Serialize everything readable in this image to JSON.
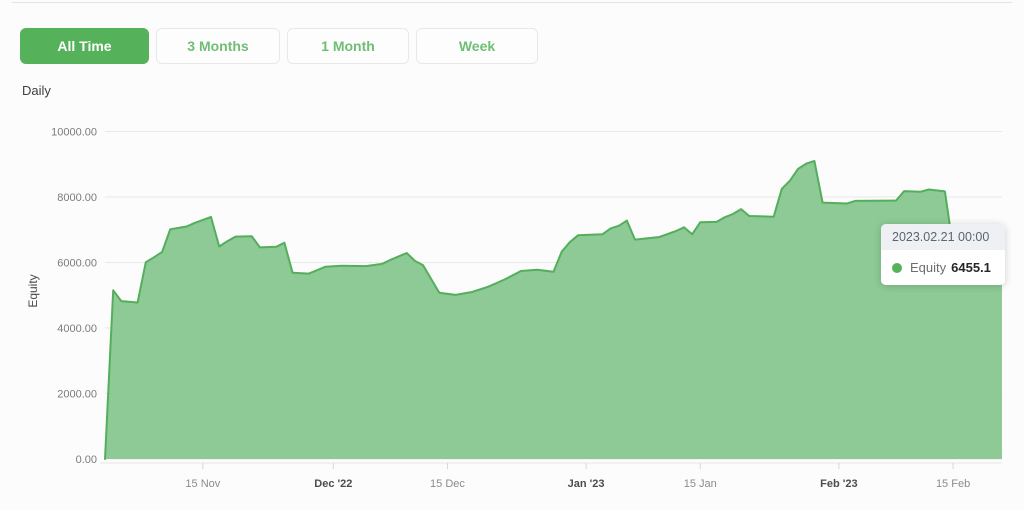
{
  "toolbar": {
    "buttons": [
      {
        "label": "All Time",
        "active": true
      },
      {
        "label": "3 Months",
        "active": false
      },
      {
        "label": "1 Month",
        "active": false
      },
      {
        "label": "Week",
        "active": false
      }
    ]
  },
  "frequency_label": "Daily",
  "tooltip": {
    "date": "2023.02.21 00:00",
    "series_label": "Equity",
    "value": "6455.1",
    "marker_color": "#56b15b"
  },
  "colors": {
    "accent_green": "#56b15b",
    "area_fill": "#7dc388",
    "line": "#54ae5c",
    "gridline": "#e9e9e9",
    "axis_line": "#e6e6e6",
    "tick_mark": "#d8d8d8",
    "y_label": "#7b7b7b",
    "x_label": "#8b8b8b",
    "x_label_bold": "#4c4c4c",
    "page_background": "#fcfcfc"
  },
  "chart_data": {
    "type": "area",
    "title": "",
    "xlabel": "",
    "ylabel": "Equity",
    "grid": true,
    "legend": "none",
    "ylim": [
      0,
      10000
    ],
    "x_range": [
      "2022-11-03",
      "2023-02-21"
    ],
    "y_ticks": [
      {
        "value": 0,
        "label": "0.00"
      },
      {
        "value": 2000,
        "label": "2000.00"
      },
      {
        "value": 4000,
        "label": "4000.00"
      },
      {
        "value": 6000,
        "label": "6000.00"
      },
      {
        "value": 8000,
        "label": "8000.00"
      },
      {
        "value": 10000,
        "label": "10000.00"
      }
    ],
    "x_ticks": [
      {
        "label": "15 Nov",
        "date": "2022-11-15",
        "bold": false
      },
      {
        "label": "Dec '22",
        "date": "2022-12-01",
        "bold": true
      },
      {
        "label": "15 Dec",
        "date": "2022-12-15",
        "bold": false
      },
      {
        "label": "Jan '23",
        "date": "2023-01-01",
        "bold": true
      },
      {
        "label": "15 Jan",
        "date": "2023-01-15",
        "bold": false
      },
      {
        "label": "Feb '23",
        "date": "2023-02-01",
        "bold": true
      },
      {
        "label": "15 Feb",
        "date": "2023-02-15",
        "bold": false
      }
    ],
    "series": [
      {
        "name": "Equity",
        "points": [
          [
            "2022-11-03",
            0
          ],
          [
            "2022-11-04",
            5150
          ],
          [
            "2022-11-05",
            4820
          ],
          [
            "2022-11-07",
            4780
          ],
          [
            "2022-11-08",
            6010
          ],
          [
            "2022-11-09",
            6160
          ],
          [
            "2022-11-10",
            6320
          ],
          [
            "2022-11-11",
            7015
          ],
          [
            "2022-11-13",
            7100
          ],
          [
            "2022-11-14",
            7210
          ],
          [
            "2022-11-16",
            7390
          ],
          [
            "2022-11-17",
            6490
          ],
          [
            "2022-11-18",
            6650
          ],
          [
            "2022-11-19",
            6790
          ],
          [
            "2022-11-21",
            6800
          ],
          [
            "2022-11-22",
            6460
          ],
          [
            "2022-11-24",
            6480
          ],
          [
            "2022-11-25",
            6600
          ],
          [
            "2022-11-26",
            5690
          ],
          [
            "2022-11-28",
            5660
          ],
          [
            "2022-11-30",
            5870
          ],
          [
            "2022-12-02",
            5900
          ],
          [
            "2022-12-05",
            5890
          ],
          [
            "2022-12-07",
            5960
          ],
          [
            "2022-12-08",
            6080
          ],
          [
            "2022-12-10",
            6290
          ],
          [
            "2022-12-11",
            6050
          ],
          [
            "2022-12-12",
            5920
          ],
          [
            "2022-12-14",
            5075
          ],
          [
            "2022-12-16",
            5010
          ],
          [
            "2022-12-18",
            5100
          ],
          [
            "2022-12-20",
            5260
          ],
          [
            "2022-12-22",
            5480
          ],
          [
            "2022-12-24",
            5740
          ],
          [
            "2022-12-26",
            5780
          ],
          [
            "2022-12-28",
            5720
          ],
          [
            "2022-12-29",
            6330
          ],
          [
            "2022-12-30",
            6620
          ],
          [
            "2022-12-31",
            6830
          ],
          [
            "2023-01-03",
            6860
          ],
          [
            "2023-01-04",
            7040
          ],
          [
            "2023-01-05",
            7120
          ],
          [
            "2023-01-06",
            7280
          ],
          [
            "2023-01-07",
            6700
          ],
          [
            "2023-01-10",
            6780
          ],
          [
            "2023-01-12",
            6960
          ],
          [
            "2023-01-13",
            7075
          ],
          [
            "2023-01-14",
            6860
          ],
          [
            "2023-01-15",
            7230
          ],
          [
            "2023-01-17",
            7240
          ],
          [
            "2023-01-18",
            7380
          ],
          [
            "2023-01-19",
            7480
          ],
          [
            "2023-01-20",
            7630
          ],
          [
            "2023-01-21",
            7420
          ],
          [
            "2023-01-24",
            7400
          ],
          [
            "2023-01-25",
            8250
          ],
          [
            "2023-01-26",
            8500
          ],
          [
            "2023-01-27",
            8860
          ],
          [
            "2023-01-28",
            9020
          ],
          [
            "2023-01-29",
            9100
          ],
          [
            "2023-01-30",
            7830
          ],
          [
            "2023-02-02",
            7800
          ],
          [
            "2023-02-03",
            7880
          ],
          [
            "2023-02-08",
            7890
          ],
          [
            "2023-02-09",
            8180
          ],
          [
            "2023-02-11",
            8160
          ],
          [
            "2023-02-12",
            8230
          ],
          [
            "2023-02-14",
            8170
          ],
          [
            "2023-02-15",
            6455
          ],
          [
            "2023-02-21",
            6455.1
          ]
        ]
      }
    ],
    "highlighted_point": {
      "date": "2023-02-21",
      "value": 6455.1
    }
  }
}
